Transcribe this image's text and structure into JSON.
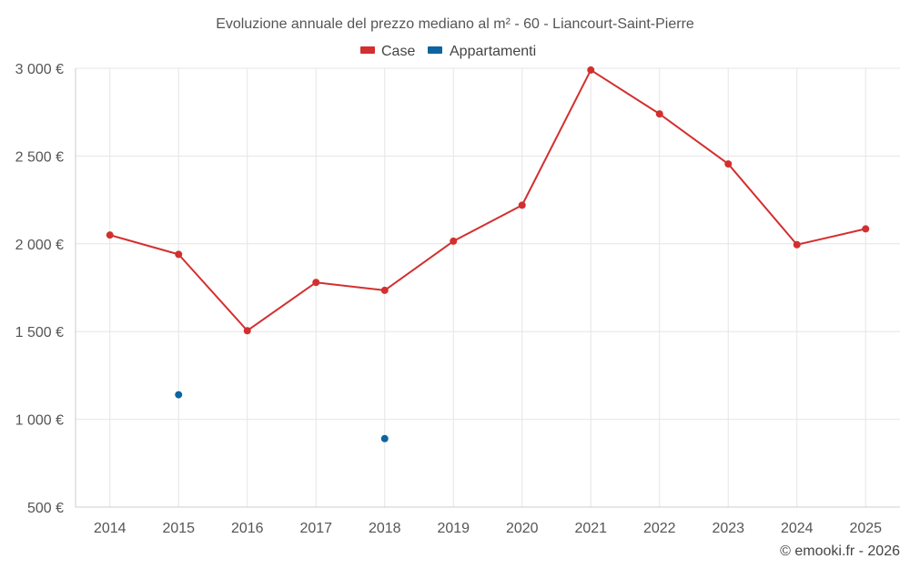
{
  "chart_data": {
    "type": "line",
    "title": "Evoluzione annuale del prezzo mediano al m² - 60 - Liancourt-Saint-Pierre",
    "categories": [
      "2014",
      "2015",
      "2016",
      "2017",
      "2018",
      "2019",
      "2020",
      "2021",
      "2022",
      "2023",
      "2024",
      "2025"
    ],
    "ylim": [
      500,
      3000
    ],
    "yticks": [
      500,
      1000,
      1500,
      2000,
      2500,
      3000
    ],
    "ytick_labels": [
      "500 €",
      "1 000 €",
      "1 500 €",
      "2 000 €",
      "2 500 €",
      "3 000 €"
    ],
    "grid": true,
    "legend_position": "top-center",
    "series": [
      {
        "name": "Case",
        "color": "#d32f2f",
        "values": [
          2050,
          1940,
          1505,
          1780,
          1735,
          2015,
          2220,
          2990,
          2740,
          2455,
          1995,
          2085
        ]
      },
      {
        "name": "Appartamenti",
        "color": "#0d64a0",
        "values": [
          null,
          1140,
          null,
          null,
          890,
          null,
          null,
          null,
          null,
          null,
          null,
          null
        ]
      }
    ],
    "credit": "© emooki.fr - 2026"
  }
}
